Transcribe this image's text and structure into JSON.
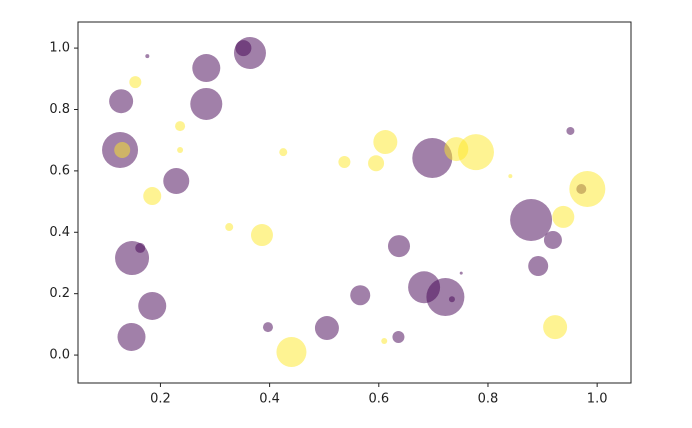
{
  "chart_data": {
    "type": "scatter",
    "xlim": [
      0.049,
      1.062
    ],
    "ylim": [
      -0.091,
      1.085
    ],
    "xticks": [
      0.2,
      0.4,
      0.6,
      0.8,
      {
        "value": 1,
        "label": "1.0"
      }
    ],
    "yticks": [
      {
        "value": 0,
        "label": "0.0"
      },
      0.2,
      0.4,
      0.6,
      0.8,
      {
        "value": 1,
        "label": "1.0"
      }
    ],
    "grid": false,
    "series": [
      {
        "color": "#440154",
        "x": [
          0.364,
          0.352,
          0.284,
          0.284,
          0.128,
          0.126,
          0.229,
          0.698,
          0.879,
          0.919,
          0.892,
          0.951,
          0.148,
          0.163,
          0.185,
          0.147,
          0.397,
          0.505,
          0.566,
          0.637,
          0.683,
          0.722,
          0.734,
          0.636,
          0.176,
          0.751,
          0.971
        ],
        "values": [
          0.984,
          1.0,
          0.935,
          0.818,
          0.827,
          0.668,
          0.567,
          0.642,
          0.44,
          0.375,
          0.29,
          0.73,
          0.316,
          0.349,
          0.16,
          0.059,
          0.091,
          0.088,
          0.195,
          0.355,
          0.221,
          0.189,
          0.182,
          0.059,
          0.974,
          0.267,
          0.541
        ],
        "sizes": [
          1024,
          256,
          784,
          1024,
          576,
          1296,
          676,
          1600,
          1764,
          324,
          400,
          64,
          1156,
          100,
          784,
          784,
          100,
          576,
          400,
          484,
          1024,
          1444,
          36,
          144,
          16,
          9,
          100
        ]
      },
      {
        "color": "#fde725",
        "x": [
          0.154,
          0.236,
          0.236,
          0.185,
          0.13,
          0.326,
          0.386,
          0.425,
          0.537,
          0.595,
          0.612,
          0.742,
          0.778,
          0.841,
          0.982,
          0.938,
          0.923,
          0.44,
          0.61
        ],
        "values": [
          0.889,
          0.746,
          0.668,
          0.518,
          0.668,
          0.417,
          0.391,
          0.661,
          0.629,
          0.625,
          0.694,
          0.671,
          0.661,
          0.583,
          0.541,
          0.45,
          0.091,
          0.01,
          0.046
        ],
        "sizes": [
          144,
          100,
          36,
          324,
          256,
          64,
          484,
          64,
          144,
          256,
          576,
          576,
          1296,
          16,
          1296,
          484,
          576,
          900,
          36
        ]
      }
    ]
  }
}
